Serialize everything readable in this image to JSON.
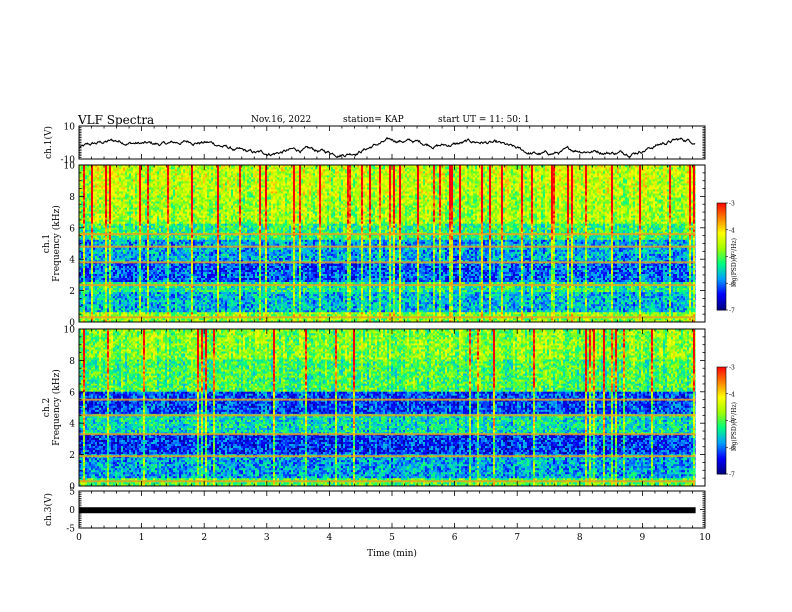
{
  "header": {
    "title": "VLF Spectra",
    "date": "Nov.16, 2022",
    "station": "station= KAP",
    "start": "start  UT =   11: 50: 1"
  },
  "chart_data": [
    {
      "type": "line",
      "name": "ch1-waveform",
      "ylabel": "ch.1(V)",
      "ylim": [
        -10,
        10
      ],
      "xlim": [
        0,
        10
      ],
      "yticks": [
        "10",
        "-10"
      ],
      "baseline_level": -3,
      "series_color": "#000000"
    },
    {
      "type": "heatmap",
      "name": "ch1-spectrogram",
      "ylabel": "ch.1\nFrequency  (kHz)",
      "ylim": [
        0,
        10
      ],
      "xlim": [
        0,
        10
      ],
      "yticks": [
        "0",
        "2",
        "4",
        "6",
        "8",
        "10"
      ],
      "colorbar": {
        "label": "log(PSD)(V²/Hz)",
        "range": [
          -7,
          -3
        ],
        "ticks": [
          "-3",
          "-4",
          "-5",
          "-6",
          "-7"
        ],
        "colors": [
          "#000080",
          "#0000ff",
          "#00a0ff",
          "#00ff80",
          "#a0ff00",
          "#ffff00",
          "#ff8000",
          "#ff0000",
          "#ffffff"
        ]
      }
    },
    {
      "type": "heatmap",
      "name": "ch2-spectrogram",
      "ylabel": "ch.2\nFrequency  (kHz)",
      "ylim": [
        0,
        10
      ],
      "xlim": [
        0,
        10
      ],
      "yticks": [
        "0",
        "2",
        "4",
        "6",
        "8",
        "10"
      ],
      "colorbar": {
        "label": "log(PSD)(V²/Hz)",
        "range": [
          -7,
          -3
        ],
        "ticks": [
          "-3",
          "-4",
          "-5",
          "-6",
          "-7"
        ],
        "colors": [
          "#000080",
          "#0000ff",
          "#00a0ff",
          "#00ff80",
          "#a0ff00",
          "#ffff00",
          "#ff8000",
          "#ff0000",
          "#ffffff"
        ]
      }
    },
    {
      "type": "line",
      "name": "ch3-waveform",
      "ylabel": "ch.3(V)",
      "ylim": [
        -5,
        5
      ],
      "xlim": [
        0,
        10
      ],
      "yticks": [
        "5",
        "0",
        "-5"
      ],
      "baseline_level": -0.2,
      "series_color": "#000000"
    }
  ],
  "xaxis": {
    "label": "Time  (min)",
    "ticks": [
      "0",
      "1",
      "2",
      "3",
      "4",
      "5",
      "6",
      "7",
      "8",
      "9",
      "10"
    ],
    "data_end": 9.85
  }
}
